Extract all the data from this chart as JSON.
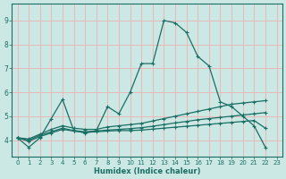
{
  "xlabel": "Humidex (Indice chaleur)",
  "ylabel": "",
  "xlim": [
    -0.5,
    23.5
  ],
  "ylim": [
    3.3,
    9.7
  ],
  "bg_color": "#cce8e4",
  "grid_color": "#e8b8b8",
  "line_color": "#1a6e64",
  "xticks": [
    0,
    1,
    2,
    3,
    4,
    5,
    6,
    7,
    8,
    9,
    10,
    11,
    12,
    13,
    14,
    15,
    16,
    17,
    18,
    19,
    20,
    21,
    22,
    23
  ],
  "yticks": [
    4,
    5,
    6,
    7,
    8,
    9
  ],
  "series": [
    {
      "x": [
        0,
        1,
        2,
        3,
        4,
        5,
        6,
        7,
        8,
        9,
        10,
        11,
        12,
        13,
        14,
        15,
        16,
        17,
        18,
        19,
        20,
        21,
        22
      ],
      "y": [
        4.1,
        3.7,
        4.1,
        4.9,
        5.7,
        4.4,
        4.3,
        4.4,
        5.4,
        5.1,
        6.0,
        7.2,
        7.2,
        9.0,
        8.9,
        8.5,
        7.5,
        7.1,
        5.6,
        5.4,
        5.0,
        4.6,
        3.7
      ]
    },
    {
      "x": [
        0,
        1,
        2,
        3,
        4,
        5,
        6,
        7,
        8,
        9,
        10,
        11,
        12,
        13,
        14,
        15,
        16,
        17,
        18,
        19,
        20,
        21,
        22
      ],
      "y": [
        4.1,
        4.05,
        4.25,
        4.45,
        4.6,
        4.5,
        4.45,
        4.45,
        4.55,
        4.6,
        4.65,
        4.7,
        4.8,
        4.9,
        5.0,
        5.1,
        5.2,
        5.3,
        5.4,
        5.5,
        5.55,
        5.6,
        5.65
      ]
    },
    {
      "x": [
        0,
        1,
        2,
        3,
        4,
        5,
        6,
        7,
        8,
        9,
        10,
        11,
        12,
        13,
        14,
        15,
        16,
        17,
        18,
        19,
        20,
        21,
        22
      ],
      "y": [
        4.1,
        4.0,
        4.2,
        4.35,
        4.5,
        4.4,
        4.35,
        4.38,
        4.42,
        4.45,
        4.48,
        4.52,
        4.58,
        4.65,
        4.72,
        4.78,
        4.85,
        4.9,
        4.95,
        5.0,
        5.05,
        5.1,
        5.15
      ]
    },
    {
      "x": [
        0,
        1,
        2,
        3,
        4,
        5,
        6,
        7,
        8,
        9,
        10,
        11,
        12,
        13,
        14,
        15,
        16,
        17,
        18,
        19,
        20,
        21,
        22
      ],
      "y": [
        4.1,
        3.95,
        4.15,
        4.3,
        4.45,
        4.38,
        4.32,
        4.35,
        4.38,
        4.4,
        4.4,
        4.42,
        4.46,
        4.5,
        4.54,
        4.58,
        4.62,
        4.66,
        4.7,
        4.74,
        4.78,
        4.82,
        4.5
      ]
    }
  ]
}
